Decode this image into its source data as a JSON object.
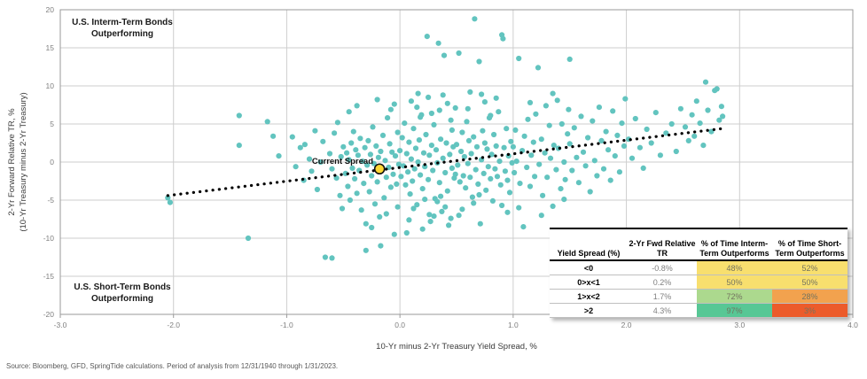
{
  "source_note": "Source: Bloomberg, GFD, SpringTide calculations. Period of analysis from 12/31/1940 through 1/31/2023.",
  "chart_data": {
    "type": "scatter",
    "title": "",
    "xlabel": "10-Yr minus 2-Yr Treasury Yield Spread, %",
    "ylabel_line1": "2-Yr Forward Relative TR, %",
    "ylabel_line2": "(10-Yr Treasury minus 2-Yr Treasury)",
    "xlim": [
      -3.0,
      4.0
    ],
    "ylim": [
      -20,
      20
    ],
    "x_ticks": [
      "-3.0",
      "-2.0",
      "-1.0",
      "0.0",
      "1.0",
      "2.0",
      "3.0",
      "4.0"
    ],
    "y_ticks": [
      20,
      15,
      10,
      5,
      0,
      -5,
      -10,
      -15,
      -20
    ],
    "grid": "on",
    "legend": "none",
    "point_color": "#62C4BF",
    "trend_line": {
      "style": "dotted",
      "color": "#000000",
      "x1": -2.05,
      "y1": -4.4,
      "x2": 2.85,
      "y2": 4.4
    },
    "current_spread": {
      "label": "Current Spread",
      "x": -0.18,
      "y": -0.9,
      "color": "#FFD733"
    },
    "annotations": {
      "top_left_line1": "U.S. Interm-Term Bonds",
      "top_left_line2": "Outperforming",
      "bottom_left_line1": "U.S. Short-Term Bonds",
      "bottom_left_line2": "Outperforming"
    },
    "points": [
      [
        -2.05,
        -4.7
      ],
      [
        -2.03,
        -5.3
      ],
      [
        -1.42,
        6.1
      ],
      [
        -1.34,
        -10.0
      ],
      [
        -1.17,
        5.3
      ],
      [
        -1.42,
        2.2
      ],
      [
        -1.07,
        0.8
      ],
      [
        -1.12,
        3.4
      ],
      [
        -0.95,
        3.3
      ],
      [
        -0.92,
        -0.6
      ],
      [
        -0.88,
        1.9
      ],
      [
        -0.85,
        -2.4
      ],
      [
        -0.84,
        2.3
      ],
      [
        -0.8,
        0.4
      ],
      [
        -0.78,
        -1.2
      ],
      [
        -0.75,
        4.1
      ],
      [
        -0.73,
        -3.6
      ],
      [
        -0.7,
        0.0
      ],
      [
        -0.68,
        2.7
      ],
      [
        -0.66,
        -12.5
      ],
      [
        -0.6,
        -12.6
      ],
      [
        -0.62,
        1.1
      ],
      [
        -0.6,
        -0.9
      ],
      [
        -0.58,
        3.8
      ],
      [
        -0.56,
        -2.1
      ],
      [
        -0.55,
        5.2
      ],
      [
        -0.53,
        -4.4
      ],
      [
        -0.52,
        0.7
      ],
      [
        -0.51,
        -6.1
      ],
      [
        -0.5,
        2.0
      ],
      [
        -0.48,
        -1.5
      ],
      [
        -0.47,
        1.2
      ],
      [
        -0.46,
        -3.2
      ],
      [
        -0.45,
        0.3
      ],
      [
        -0.44,
        -5.0
      ],
      [
        -0.43,
        2.5
      ],
      [
        -0.42,
        -0.8
      ],
      [
        -0.41,
        4.0
      ],
      [
        -0.4,
        -2.2
      ],
      [
        -0.39,
        1.6
      ],
      [
        -0.38,
        -4.1
      ],
      [
        -0.37,
        0.9
      ],
      [
        -0.36,
        -1.1
      ],
      [
        -0.35,
        3.1
      ],
      [
        -0.34,
        -6.3
      ],
      [
        -0.33,
        0.1
      ],
      [
        -0.32,
        -2.8
      ],
      [
        -0.31,
        1.9
      ],
      [
        -0.3,
        -11.6
      ],
      [
        -0.29,
        -0.4
      ],
      [
        -0.28,
        2.8
      ],
      [
        -0.27,
        -3.9
      ],
      [
        -0.26,
        1.0
      ],
      [
        -0.25,
        -1.8
      ],
      [
        -0.24,
        4.6
      ],
      [
        -0.23,
        -0.2
      ],
      [
        -0.22,
        -5.5
      ],
      [
        -0.21,
        2.1
      ],
      [
        -0.2,
        -2.6
      ],
      [
        -0.19,
        0.6
      ],
      [
        -0.18,
        -7.2
      ],
      [
        -0.17,
        -11.0
      ],
      [
        -0.17,
        1.4
      ],
      [
        -0.16,
        -1.0
      ],
      [
        -0.15,
        3.5
      ],
      [
        -0.14,
        -4.7
      ],
      [
        -0.13,
        0.2
      ],
      [
        -0.12,
        -2.0
      ],
      [
        -0.11,
        5.8
      ],
      [
        -0.1,
        -0.7
      ],
      [
        -0.09,
        2.4
      ],
      [
        -0.08,
        -3.3
      ],
      [
        -0.07,
        1.3
      ],
      [
        -0.06,
        -1.6
      ],
      [
        -0.05,
        7.6
      ],
      [
        -0.05,
        -9.5
      ],
      [
        -0.04,
        0.8
      ],
      [
        -0.03,
        -2.9
      ],
      [
        -0.02,
        3.9
      ],
      [
        -0.01,
        -0.3
      ],
      [
        -0.3,
        -8.1
      ],
      [
        -0.25,
        -8.6
      ],
      [
        -0.45,
        6.6
      ],
      [
        -0.38,
        7.4
      ],
      [
        -0.2,
        8.2
      ],
      [
        -0.12,
        -6.8
      ],
      [
        -0.08,
        6.9
      ],
      [
        -0.02,
        -5.9
      ],
      [
        0.0,
        1.5
      ],
      [
        0.01,
        -1.9
      ],
      [
        0.02,
        3.2
      ],
      [
        0.03,
        -0.5
      ],
      [
        0.04,
        5.1
      ],
      [
        0.05,
        -3.0
      ],
      [
        0.06,
        1.1
      ],
      [
        0.07,
        -1.3
      ],
      [
        0.08,
        2.6
      ],
      [
        0.09,
        -4.2
      ],
      [
        0.1,
        0.4
      ],
      [
        0.11,
        -2.5
      ],
      [
        0.12,
        4.4
      ],
      [
        0.13,
        -0.9
      ],
      [
        0.14,
        1.8
      ],
      [
        0.15,
        -5.6
      ],
      [
        0.16,
        0.0
      ],
      [
        0.17,
        2.9
      ],
      [
        0.18,
        -1.7
      ],
      [
        0.19,
        6.2
      ],
      [
        0.2,
        -3.5
      ],
      [
        0.21,
        1.2
      ],
      [
        0.22,
        -0.6
      ],
      [
        0.23,
        3.6
      ],
      [
        0.24,
        16.5
      ],
      [
        0.25,
        -2.3
      ],
      [
        0.26,
        0.9
      ],
      [
        0.27,
        -7.8
      ],
      [
        0.28,
        2.2
      ],
      [
        0.29,
        -1.1
      ],
      [
        0.3,
        4.9
      ],
      [
        0.31,
        -4.8
      ],
      [
        0.32,
        1.6
      ],
      [
        0.33,
        -0.1
      ],
      [
        0.34,
        15.6
      ],
      [
        0.35,
        -2.7
      ],
      [
        0.36,
        3.0
      ],
      [
        0.37,
        -6.5
      ],
      [
        0.38,
        0.5
      ],
      [
        0.39,
        14.0
      ],
      [
        0.4,
        -1.4
      ],
      [
        0.41,
        2.5
      ],
      [
        0.42,
        -3.8
      ],
      [
        0.43,
        -8.3
      ],
      [
        0.44,
        1.0
      ],
      [
        0.45,
        5.5
      ],
      [
        0.46,
        -0.8
      ],
      [
        0.47,
        2.0
      ],
      [
        0.48,
        -2.1
      ],
      [
        0.49,
        7.1
      ],
      [
        0.06,
        -9.3
      ],
      [
        0.1,
        8.0
      ],
      [
        0.15,
        7.2
      ],
      [
        0.2,
        -8.8
      ],
      [
        0.25,
        8.5
      ],
      [
        0.3,
        -7.1
      ],
      [
        0.35,
        6.8
      ],
      [
        0.4,
        -5.9
      ],
      [
        0.45,
        -7.4
      ],
      [
        0.12,
        -6.1
      ],
      [
        0.18,
        5.9
      ],
      [
        0.22,
        -4.9
      ],
      [
        0.28,
        6.4
      ],
      [
        0.33,
        -5.2
      ],
      [
        0.38,
        8.8
      ],
      [
        0.42,
        7.7
      ],
      [
        0.08,
        -7.6
      ],
      [
        0.16,
        9.0
      ],
      [
        0.26,
        -6.9
      ],
      [
        0.36,
        -4.5
      ],
      [
        0.46,
        4.2
      ],
      [
        0.49,
        -1.6
      ],
      [
        0.5,
        2.3
      ],
      [
        0.51,
        -0.4
      ],
      [
        0.52,
        14.3
      ],
      [
        0.53,
        -2.6
      ],
      [
        0.54,
        1.4
      ],
      [
        0.55,
        3.9
      ],
      [
        0.56,
        -1.8
      ],
      [
        0.57,
        0.7
      ],
      [
        0.58,
        -3.4
      ],
      [
        0.59,
        5.3
      ],
      [
        0.6,
        -0.2
      ],
      [
        0.61,
        2.8
      ],
      [
        0.62,
        -2.0
      ],
      [
        0.63,
        1.1
      ],
      [
        0.64,
        -4.6
      ],
      [
        0.65,
        3.3
      ],
      [
        0.66,
        18.8
      ],
      [
        0.67,
        -1.0
      ],
      [
        0.68,
        2.0
      ],
      [
        0.69,
        -2.9
      ],
      [
        0.7,
        13.2
      ],
      [
        0.71,
        -8.1
      ],
      [
        0.72,
        0.3
      ],
      [
        0.73,
        4.1
      ],
      [
        0.74,
        -1.5
      ],
      [
        0.75,
        2.5
      ],
      [
        0.76,
        -3.7
      ],
      [
        0.77,
        1.7
      ],
      [
        0.78,
        -0.6
      ],
      [
        0.79,
        5.8
      ],
      [
        0.8,
        -2.2
      ],
      [
        0.81,
        1.0
      ],
      [
        0.82,
        -5.1
      ],
      [
        0.83,
        3.6
      ],
      [
        0.84,
        -0.9
      ],
      [
        0.85,
        2.1
      ],
      [
        0.86,
        -1.9
      ],
      [
        0.87,
        6.6
      ],
      [
        0.88,
        0.1
      ],
      [
        0.89,
        -3.0
      ],
      [
        0.9,
        16.7
      ],
      [
        0.91,
        16.2
      ],
      [
        0.92,
        1.9
      ],
      [
        0.93,
        -1.2
      ],
      [
        0.94,
        4.4
      ],
      [
        0.95,
        -2.4
      ],
      [
        0.96,
        0.8
      ],
      [
        0.97,
        -4.0
      ],
      [
        0.98,
        2.7
      ],
      [
        0.99,
        -0.1
      ],
      [
        0.55,
        -6.2
      ],
      [
        0.65,
        -5.4
      ],
      [
        0.75,
        7.9
      ],
      [
        0.85,
        8.4
      ],
      [
        0.95,
        -6.6
      ],
      [
        0.6,
        7.0
      ],
      [
        0.7,
        -4.3
      ],
      [
        0.8,
        6.1
      ],
      [
        0.9,
        -5.7
      ],
      [
        0.52,
        -7.0
      ],
      [
        0.62,
        9.2
      ],
      [
        0.72,
        8.9
      ],
      [
        1.0,
        2.0
      ],
      [
        1.01,
        -1.4
      ],
      [
        1.02,
        4.2
      ],
      [
        1.03,
        0.1
      ],
      [
        1.05,
        13.6
      ],
      [
        1.06,
        -2.8
      ],
      [
        1.08,
        1.5
      ],
      [
        1.09,
        -8.5
      ],
      [
        1.1,
        3.4
      ],
      [
        1.12,
        -0.7
      ],
      [
        1.13,
        5.6
      ],
      [
        1.15,
        -3.2
      ],
      [
        1.16,
        0.9
      ],
      [
        1.18,
        2.6
      ],
      [
        1.19,
        -1.9
      ],
      [
        1.2,
        6.3
      ],
      [
        1.22,
        12.4
      ],
      [
        1.23,
        -0.3
      ],
      [
        1.25,
        3.0
      ],
      [
        1.26,
        -4.4
      ],
      [
        1.28,
        1.2
      ],
      [
        1.29,
        7.4
      ],
      [
        1.3,
        -2.0
      ],
      [
        1.32,
        4.8
      ],
      [
        1.33,
        0.5
      ],
      [
        1.35,
        -5.8
      ],
      [
        1.36,
        2.2
      ],
      [
        1.38,
        -1.0
      ],
      [
        1.39,
        8.1
      ],
      [
        1.4,
        1.8
      ],
      [
        1.42,
        -3.5
      ],
      [
        1.43,
        5.0
      ],
      [
        1.45,
        0.0
      ],
      [
        1.46,
        -2.3
      ],
      [
        1.48,
        3.7
      ],
      [
        1.49,
        6.9
      ],
      [
        1.05,
        -6.0
      ],
      [
        1.15,
        7.8
      ],
      [
        1.25,
        -7.0
      ],
      [
        1.35,
        9.0
      ],
      [
        1.45,
        -4.9
      ],
      [
        1.5,
        13.5
      ],
      [
        1.5,
        2.4
      ],
      [
        1.52,
        -1.1
      ],
      [
        1.54,
        4.5
      ],
      [
        1.56,
        0.6
      ],
      [
        1.58,
        -2.7
      ],
      [
        1.6,
        6.0
      ],
      [
        1.62,
        1.3
      ],
      [
        1.64,
        -0.5
      ],
      [
        1.66,
        3.2
      ],
      [
        1.68,
        -3.9
      ],
      [
        1.7,
        5.4
      ],
      [
        1.72,
        0.2
      ],
      [
        1.74,
        -1.8
      ],
      [
        1.76,
        7.2
      ],
      [
        1.78,
        2.8
      ],
      [
        1.8,
        -0.9
      ],
      [
        1.82,
        4.0
      ],
      [
        1.84,
        1.6
      ],
      [
        1.86,
        -2.4
      ],
      [
        1.88,
        6.7
      ],
      [
        1.9,
        0.8
      ],
      [
        1.92,
        3.5
      ],
      [
        1.94,
        -1.3
      ],
      [
        1.96,
        5.1
      ],
      [
        1.98,
        2.1
      ],
      [
        1.99,
        8.3
      ],
      [
        2.02,
        3.0
      ],
      [
        2.05,
        0.5
      ],
      [
        2.08,
        5.7
      ],
      [
        2.12,
        1.9
      ],
      [
        2.15,
        -0.8
      ],
      [
        2.18,
        4.3
      ],
      [
        2.22,
        2.5
      ],
      [
        2.26,
        6.5
      ],
      [
        2.3,
        0.9
      ],
      [
        2.35,
        3.8
      ],
      [
        2.4,
        5.0
      ],
      [
        2.44,
        1.4
      ],
      [
        2.48,
        7.0
      ],
      [
        2.52,
        4.6
      ],
      [
        2.55,
        2.8
      ],
      [
        2.58,
        6.2
      ],
      [
        2.6,
        3.4
      ],
      [
        2.62,
        8.0
      ],
      [
        2.65,
        5.1
      ],
      [
        2.68,
        2.2
      ],
      [
        2.7,
        10.5
      ],
      [
        2.72,
        6.8
      ],
      [
        2.75,
        4.0
      ],
      [
        2.78,
        9.4
      ],
      [
        2.8,
        9.6
      ],
      [
        2.82,
        5.5
      ],
      [
        2.84,
        7.3
      ],
      [
        2.85,
        6.0
      ]
    ]
  },
  "table": {
    "headers": [
      "Yield Spread (%)",
      "2-Yr Fwd Relative TR",
      "% of Time Interm-Term Outperforms",
      "% of Time Short-Term Outperforms"
    ],
    "rows": [
      {
        "spread": "<0",
        "tr": "-0.8%",
        "interm": "48%",
        "short": "52%",
        "interm_color": "#F8DF6E",
        "short_color": "#F8DF6E"
      },
      {
        "spread": "0>x<1",
        "tr": "0.2%",
        "interm": "50%",
        "short": "50%",
        "interm_color": "#F8DF6E",
        "short_color": "#F8DF6E"
      },
      {
        "spread": "1>x<2",
        "tr": "1.7%",
        "interm": "72%",
        "short": "28%",
        "interm_color": "#ACD98E",
        "short_color": "#F2A24E"
      },
      {
        "spread": ">2",
        "tr": "4.3%",
        "interm": "97%",
        "short": "3%",
        "interm_color": "#57C795",
        "short_color": "#EC5B2B"
      }
    ]
  }
}
